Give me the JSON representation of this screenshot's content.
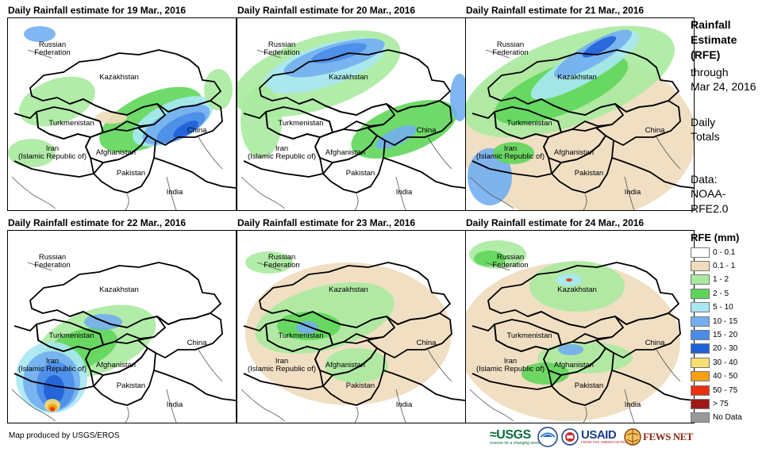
{
  "panels": [
    {
      "title": "Daily Rainfall estimate for 19 Mar., 2016"
    },
    {
      "title": "Daily Rainfall estimate for 20 Mar., 2016"
    },
    {
      "title": "Daily Rainfall estimate for 21 Mar., 2016"
    },
    {
      "title": "Daily Rainfall estimate for 22 Mar., 2016"
    },
    {
      "title": "Daily Rainfall estimate for 23 Mar., 2016"
    },
    {
      "title": "Daily Rainfall estimate for 24 Mar., 2016"
    }
  ],
  "countries": {
    "russia": "Russian\nFederation",
    "kazakhstan": "Kazakhstan",
    "turkmenistan": "Turkmenistan",
    "iran": "Iran\n(Islamic Republic of)",
    "afghanistan": "Afghanistan",
    "pakistan": "Pakistan",
    "china": "China",
    "india": "India"
  },
  "side_panel": {
    "title_line1": "Rainfall",
    "title_line2": "Estimate",
    "title_line3": "(RFE)",
    "through": "through",
    "date": "Mar 24, 2016",
    "daily": "Daily",
    "totals": "Totals",
    "data_label": "Data:",
    "data_source1": "NOAA-",
    "data_source2": "RFE2.0"
  },
  "legend": {
    "title": "RFE (mm)",
    "items": [
      {
        "label": "0 - 0.1",
        "color": "#ffffff"
      },
      {
        "label": "0.1 - 1",
        "color": "#f0dcbc"
      },
      {
        "label": "1 - 2",
        "color": "#aaeaa0"
      },
      {
        "label": "2 - 5",
        "color": "#5fd65a"
      },
      {
        "label": "5 - 10",
        "color": "#a8e8f4"
      },
      {
        "label": "10 - 15",
        "color": "#72aef0"
      },
      {
        "label": "15 - 20",
        "color": "#4a8ce8"
      },
      {
        "label": "20 - 30",
        "color": "#2060d8"
      },
      {
        "label": "30 - 40",
        "color": "#f6e070"
      },
      {
        "label": "40 - 50",
        "color": "#f4a010"
      },
      {
        "label": "50 - 75",
        "color": "#e83010"
      },
      {
        "label": "> 75",
        "color": "#a01818"
      },
      {
        "label": "No Data",
        "color": "#999999"
      }
    ]
  },
  "footer": {
    "credit": "Map produced by USGS/EROS",
    "usgs": "≈USGS",
    "usgs_tagline": "science for a changing world",
    "noaa": "NOAA",
    "usaid": "USAID",
    "usaid_tagline": "FROM THE AMERICAN PEOPLE",
    "fewsnet": "FEWS NET"
  }
}
